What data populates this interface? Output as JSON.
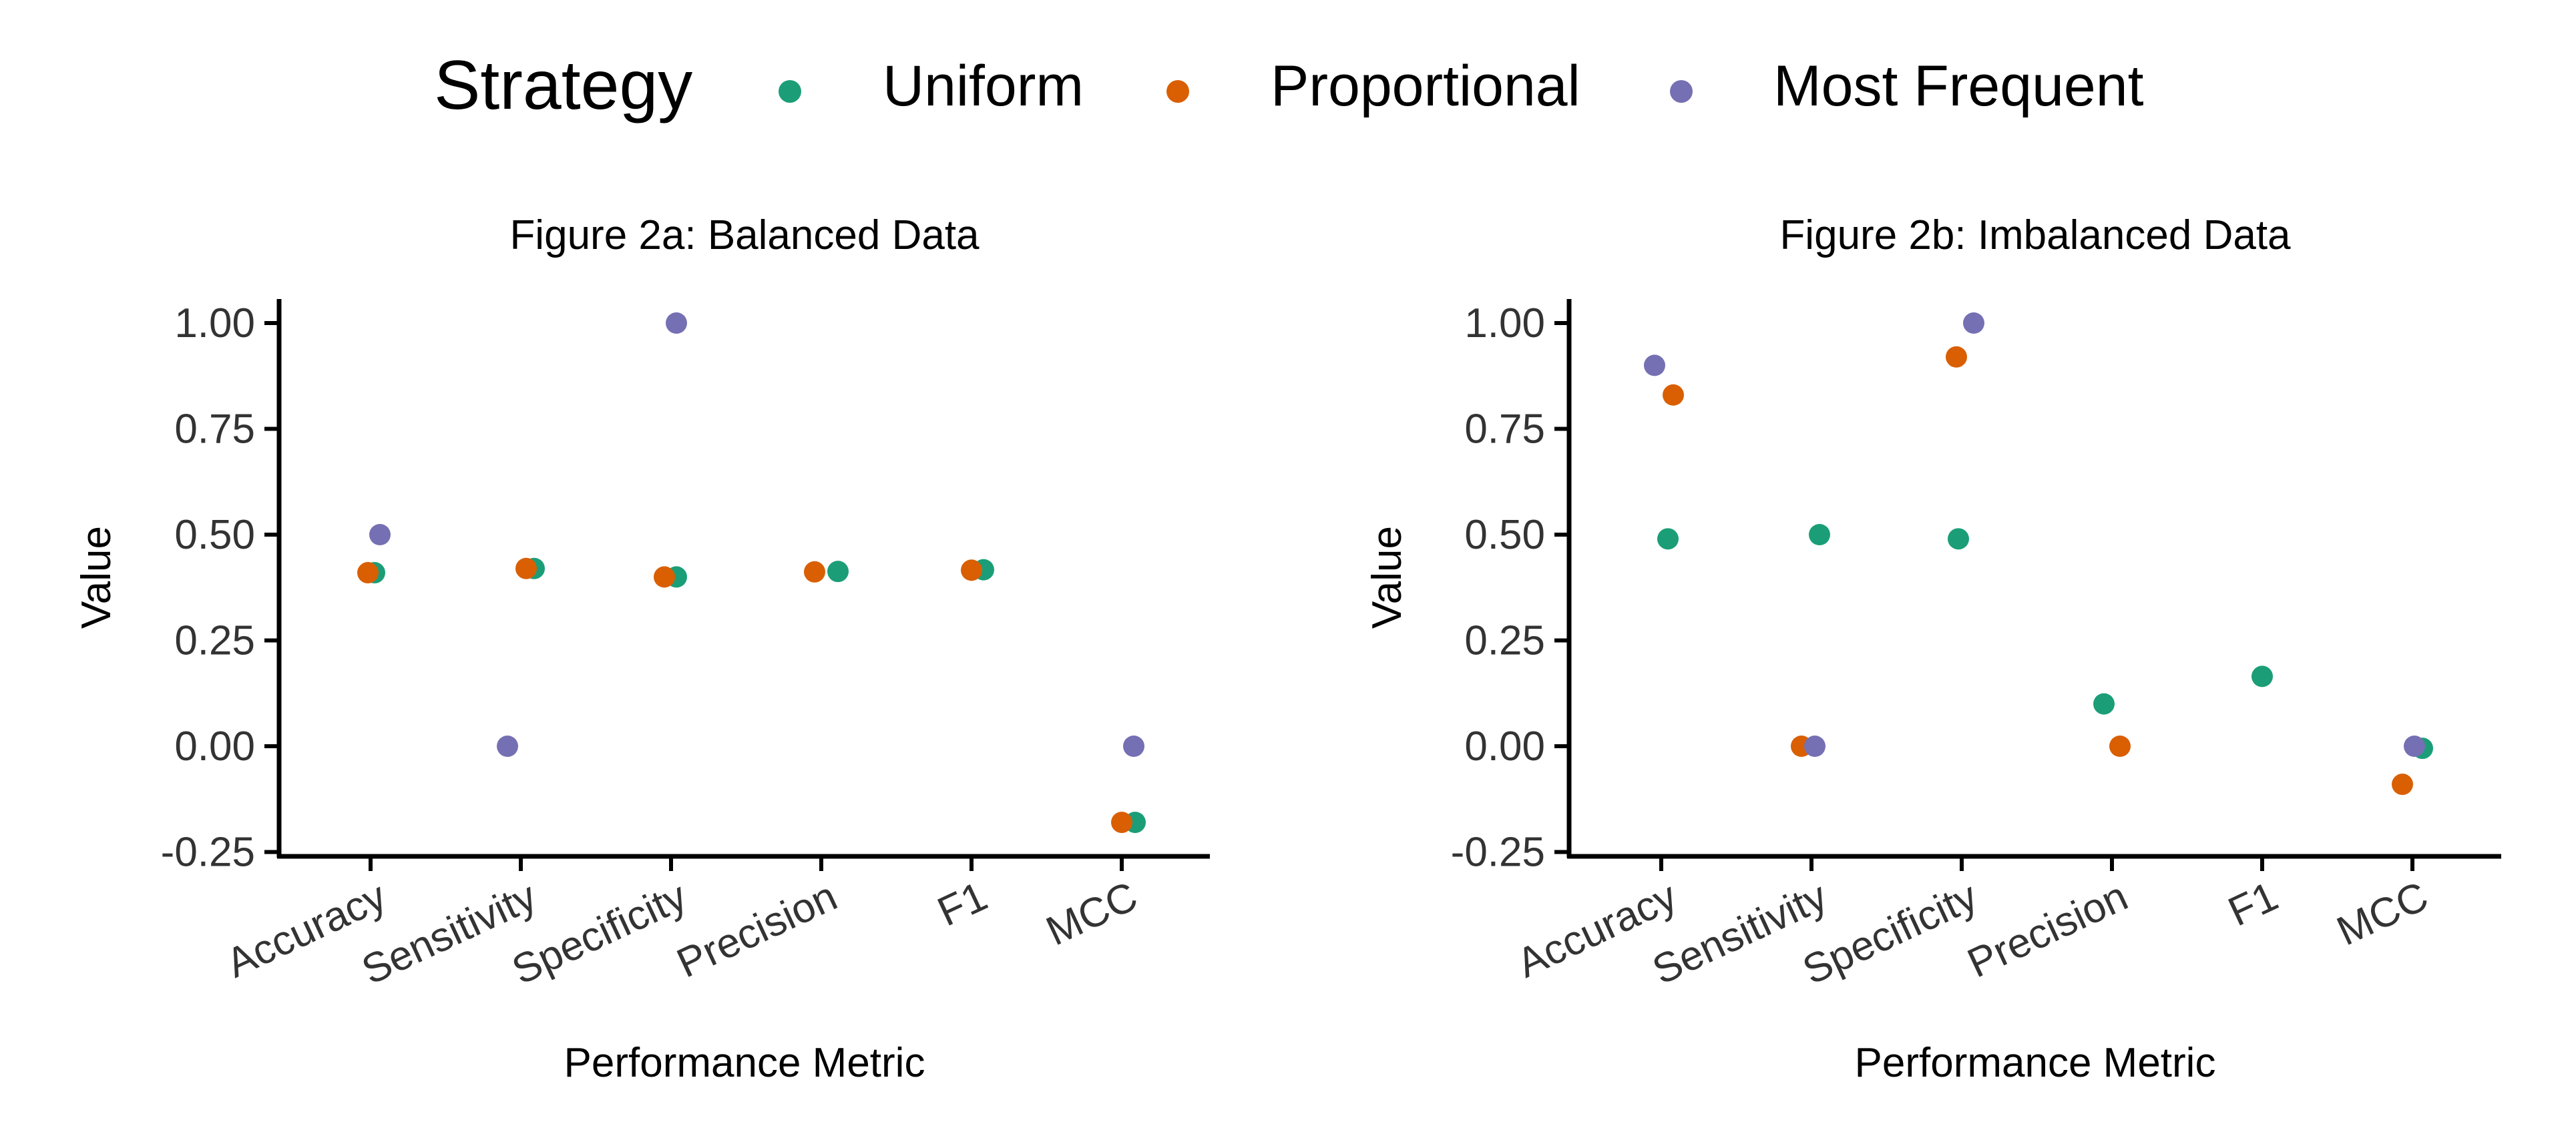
{
  "legend": {
    "title": "Strategy",
    "items": [
      {
        "label": "Uniform",
        "color": "#1b9e77"
      },
      {
        "label": "Proportional",
        "color": "#d95f02"
      },
      {
        "label": "Most Frequent",
        "color": "#7570b3"
      }
    ]
  },
  "chart_data": [
    {
      "type": "scatter",
      "title": "Figure 2a: Balanced Data",
      "xlabel": "Performance Metric",
      "ylabel": "Value",
      "categories": [
        "Accuracy",
        "Sensitivity",
        "Specificity",
        "Precision",
        "F1",
        "MCC"
      ],
      "ylim": [
        -0.25,
        1.05
      ],
      "yticks": [
        -0.25,
        0,
        0.25,
        0.5,
        0.75,
        1
      ],
      "ytick_labels": [
        "-0.25",
        "0.00",
        "0.25",
        "0.50",
        "0.75",
        "1.00"
      ],
      "grid": false,
      "legend": "top",
      "series": [
        {
          "name": "Uniform",
          "color": "#1b9e77",
          "values": [
            0.41,
            0.42,
            0.4,
            0.413,
            0.417,
            -0.18
          ]
        },
        {
          "name": "Proportional",
          "color": "#d95f02",
          "values": [
            0.41,
            0.42,
            0.4,
            0.412,
            0.416,
            -0.18
          ]
        },
        {
          "name": "Most Frequent",
          "color": "#7570b3",
          "values": [
            0.5,
            0.0,
            1.0,
            null,
            null,
            0.0
          ]
        }
      ]
    },
    {
      "type": "scatter",
      "title": "Figure 2b: Imbalanced Data",
      "xlabel": "Performance Metric",
      "ylabel": "Value",
      "categories": [
        "Accuracy",
        "Sensitivity",
        "Specificity",
        "Precision",
        "F1",
        "MCC"
      ],
      "ylim": [
        -0.25,
        1.05
      ],
      "yticks": [
        -0.25,
        0,
        0.25,
        0.5,
        0.75,
        1
      ],
      "ytick_labels": [
        "-0.25",
        "0.00",
        "0.25",
        "0.50",
        "0.75",
        "1.00"
      ],
      "grid": false,
      "legend": "top",
      "series": [
        {
          "name": "Uniform",
          "color": "#1b9e77",
          "values": [
            0.49,
            0.5,
            0.49,
            0.1,
            0.165,
            -0.005
          ]
        },
        {
          "name": "Proportional",
          "color": "#d95f02",
          "values": [
            0.83,
            0.0,
            0.92,
            0.0,
            null,
            -0.09
          ]
        },
        {
          "name": "Most Frequent",
          "color": "#7570b3",
          "values": [
            0.9,
            0.0,
            1.0,
            null,
            null,
            0.0
          ]
        }
      ]
    }
  ]
}
